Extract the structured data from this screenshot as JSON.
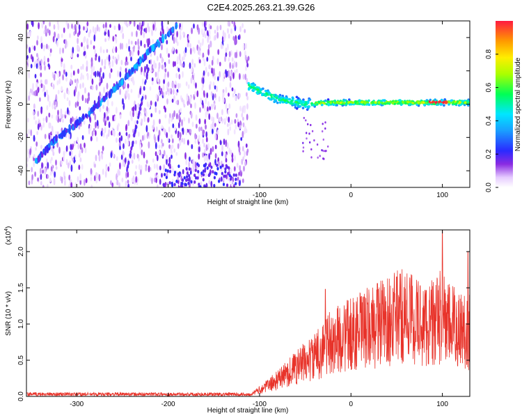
{
  "title": "C2E4.2025.263.21.39.G26",
  "chart_data": [
    {
      "type": "heatmap",
      "name": "spectrogram",
      "xlabel": "Height of straight line (km)",
      "ylabel": "Frequency (Hz)",
      "xlim": [
        -355,
        130
      ],
      "ylim": [
        -50,
        50
      ],
      "xticks": [
        -300,
        -200,
        -100,
        0,
        100
      ],
      "xtick_labels": [
        "-300",
        "-200",
        "-100",
        "0",
        "100"
      ],
      "yticks": [
        -40,
        -20,
        0,
        20,
        40
      ],
      "ytick_labels": [
        "-40",
        "-20",
        "0",
        "20",
        "40"
      ],
      "data_extent_x": [
        -355,
        -112
      ],
      "diagonal_trace": {
        "x": [
          -345,
          -325,
          -300,
          -280,
          -260,
          -240,
          -220,
          -200,
          -190
        ],
        "y": [
          -35,
          -22,
          -12,
          -2,
          8,
          20,
          32,
          42,
          48
        ]
      },
      "horizontal_trace": {
        "x": [
          -112,
          -80,
          -50,
          -20,
          0,
          50,
          100,
          130
        ],
        "y": [
          11,
          3,
          0,
          1,
          1,
          1,
          1,
          1
        ]
      },
      "colorbar": {
        "label": "Normalized spectral amplitude",
        "range": [
          0,
          1
        ],
        "ticks": [
          0.0,
          0.2,
          0.4,
          0.6,
          0.8
        ],
        "tick_labels": [
          "0.0",
          "0.2",
          "0.4",
          "0.6",
          "0.8"
        ]
      }
    },
    {
      "type": "line",
      "name": "snr",
      "xlabel": "Height of straight line (km)",
      "ylabel": "SNR (10 * v/v)",
      "multiplier_label": "(x10",
      "multiplier_exp": "4",
      "xlim": [
        -355,
        130
      ],
      "ylim": [
        0,
        2.3
      ],
      "xticks": [
        -300,
        -200,
        -100,
        0,
        100
      ],
      "xtick_labels": [
        "-300",
        "-200",
        "-100",
        "0",
        "100"
      ],
      "yticks": [
        0.0,
        0.5,
        1.0,
        1.5,
        2.0
      ],
      "ytick_labels": [
        "0.0",
        "0.5",
        "1.0",
        "1.5",
        "2.0"
      ],
      "color": "#e8332a",
      "envelope": {
        "x": [
          -355,
          -110,
          -100,
          -80,
          -60,
          -40,
          -25,
          -10,
          0,
          20,
          40,
          60,
          80,
          95,
          100,
          105,
          115,
          130
        ],
        "y": [
          0.03,
          0.03,
          0.1,
          0.25,
          0.45,
          0.6,
          0.8,
          0.9,
          0.95,
          1.05,
          1.15,
          1.25,
          1.1,
          1.15,
          1.25,
          1.1,
          1.05,
          1.0
        ]
      },
      "peaks": [
        {
          "x": -28,
          "y": 1.48
        },
        {
          "x": 29,
          "y": 1.56
        },
        {
          "x": 50,
          "y": 1.65
        },
        {
          "x": 100,
          "y": 2.3
        },
        {
          "x": 128,
          "y": 2.0
        }
      ]
    }
  ]
}
